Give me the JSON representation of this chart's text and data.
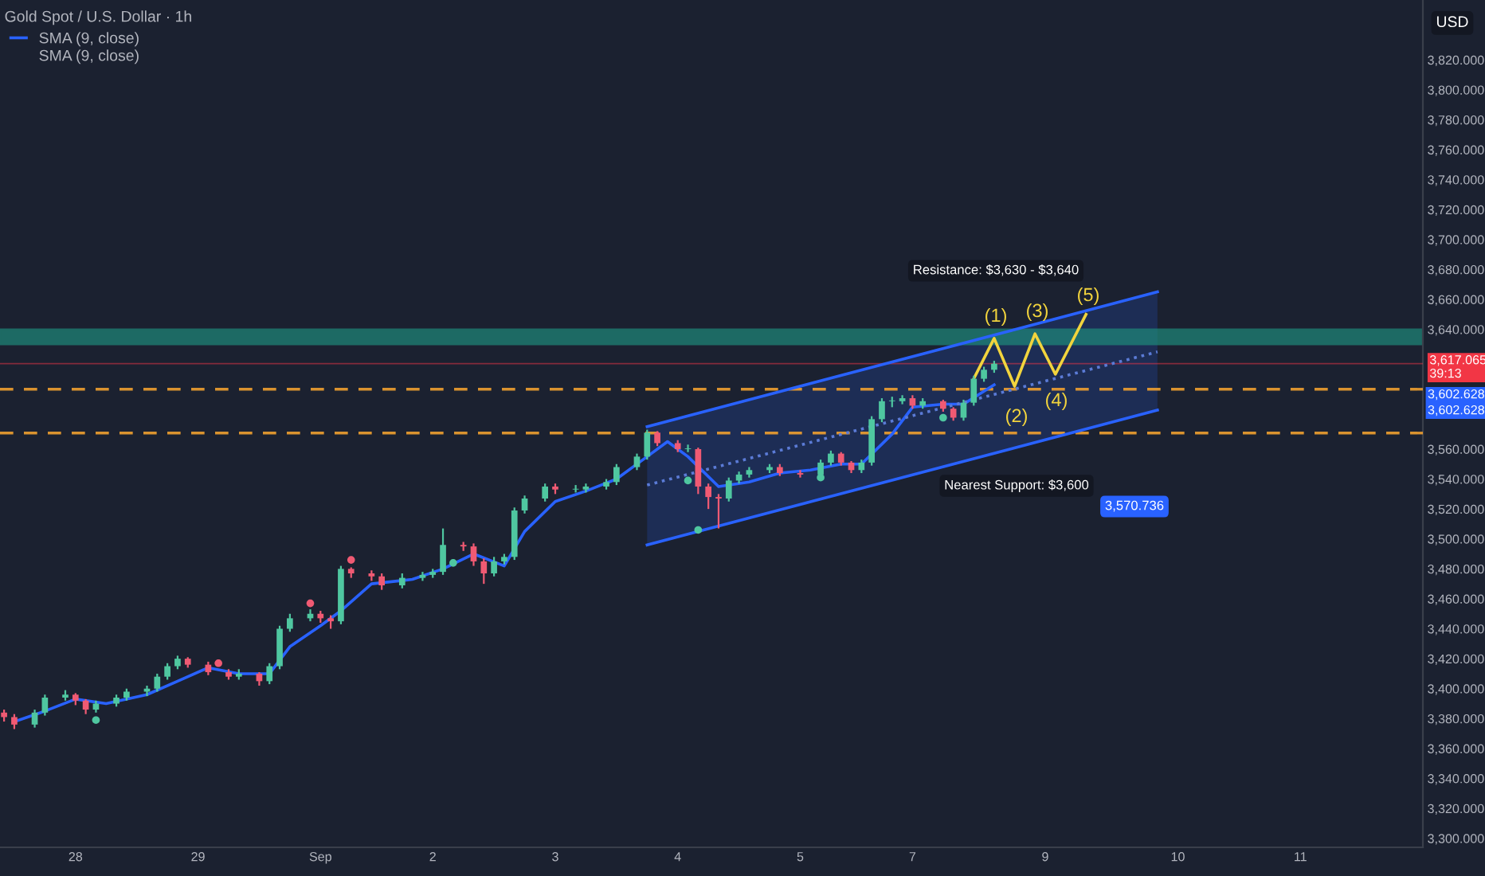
{
  "chart_data": {
    "type": "candlestick",
    "title": "Gold Spot / U.S. Dollar · 1h",
    "ylabel": "USD",
    "categories": [
      null,
      null,
      null,
      null,
      null,
      null,
      null,
      "28",
      null,
      null,
      null,
      null,
      null,
      null,
      null,
      null,
      null,
      null,
      null,
      "29",
      null,
      null,
      null,
      null,
      null,
      null,
      null,
      null,
      null,
      null,
      null,
      "Sep",
      null,
      null,
      null,
      null,
      null,
      null,
      null,
      null,
      null,
      null,
      "2",
      null,
      null,
      null,
      null,
      null,
      null,
      null,
      null,
      null,
      null,
      null,
      "3",
      null,
      null,
      null,
      null,
      null,
      null,
      null,
      null,
      null,
      null,
      null,
      "4",
      null,
      null,
      null,
      null,
      null,
      null,
      null,
      null,
      null,
      null,
      null,
      "5",
      null,
      null,
      null,
      null,
      null,
      null,
      null,
      null,
      null,
      null,
      "7",
      null,
      null,
      null,
      null,
      null,
      null,
      null,
      null,
      null,
      null,
      null,
      null,
      "9",
      null,
      null,
      null,
      null,
      null,
      null,
      null,
      null,
      null,
      null,
      null,
      null,
      "10",
      null,
      null,
      null,
      null,
      null,
      null,
      null,
      null,
      null,
      null,
      null,
      "11",
      null,
      null,
      null,
      null,
      null,
      null,
      null,
      null,
      null,
      null,
      null,
      null
    ],
    "ylim": [
      3294,
      3860
    ],
    "yticks": [
      {
        "value": 3300,
        "label": "3,300.000"
      },
      {
        "value": 3320,
        "label": "3,320.000"
      },
      {
        "value": 3340,
        "label": "3,340.000"
      },
      {
        "value": 3360,
        "label": "3,360.000"
      },
      {
        "value": 3380,
        "label": "3,380.000"
      },
      {
        "value": 3400,
        "label": "3,400.000"
      },
      {
        "value": 3420,
        "label": "3,420.000"
      },
      {
        "value": 3440,
        "label": "3,440.000"
      },
      {
        "value": 3460,
        "label": "3,460.000"
      },
      {
        "value": 3480,
        "label": "3,480.000"
      },
      {
        "value": 3500,
        "label": "3,500.000"
      },
      {
        "value": 3520,
        "label": "3,520.000"
      },
      {
        "value": 3540,
        "label": "3,540.000"
      },
      {
        "value": 3560,
        "label": "3,560.000"
      },
      {
        "value": 3640,
        "label": "3,640.000"
      },
      {
        "value": 3660,
        "label": "3,660.000"
      },
      {
        "value": 3680,
        "label": "3,680.000"
      },
      {
        "value": 3700,
        "label": "3,700.000"
      },
      {
        "value": 3720,
        "label": "3,720.000"
      },
      {
        "value": 3740,
        "label": "3,740.000"
      },
      {
        "value": 3760,
        "label": "3,760.000"
      },
      {
        "value": 3780,
        "label": "3,780.000"
      },
      {
        "value": 3800,
        "label": "3,800.000"
      },
      {
        "value": 3820,
        "label": "3,820.000"
      }
    ],
    "grid": false,
    "legend": "top left",
    "series": [
      {
        "type": "candlestick",
        "ohlc": [
          [
            3384,
            3386,
            3378,
            3381
          ],
          [
            3381,
            3383,
            3373,
            3376
          ],
          null,
          [
            3376,
            3386,
            3374,
            3384
          ],
          [
            3384,
            3396,
            3382,
            3394
          ],
          null,
          [
            3394,
            3399,
            3392,
            3396
          ],
          [
            3396,
            3397,
            3389,
            3392
          ],
          [
            3392,
            3393,
            3383,
            3386
          ],
          [
            3386,
            3392,
            3384,
            3390
          ],
          null,
          [
            3390,
            3396,
            3388,
            3394
          ],
          [
            3394,
            3400,
            3392,
            3398
          ],
          null,
          [
            3398,
            3402,
            3395,
            3400
          ],
          [
            3400,
            3410,
            3398,
            3408
          ],
          [
            3408,
            3417,
            3406,
            3415
          ],
          [
            3415,
            3422,
            3413,
            3420
          ],
          [
            3420,
            3421,
            3414,
            3416
          ],
          null,
          [
            3416,
            3418,
            3409,
            3411
          ],
          null,
          [
            3411,
            3413,
            3406,
            3408
          ],
          [
            3408,
            3413,
            3406,
            3410
          ],
          null,
          [
            3410,
            3411,
            3402,
            3405
          ],
          [
            3405,
            3417,
            3403,
            3415
          ],
          [
            3415,
            3442,
            3413,
            3440
          ],
          [
            3440,
            3450,
            3438,
            3447
          ],
          null,
          [
            3447,
            3453,
            3445,
            3450
          ],
          [
            3450,
            3452,
            3444,
            3447
          ],
          [
            3447,
            3449,
            3440,
            3445
          ],
          [
            3445,
            3482,
            3443,
            3480
          ],
          [
            3480,
            3481,
            3474,
            3477
          ],
          null,
          [
            3477,
            3479,
            3472,
            3475
          ],
          [
            3475,
            3477,
            3466,
            3469
          ],
          null,
          [
            3469,
            3477,
            3467,
            3474
          ],
          null,
          [
            3474,
            3478,
            3472,
            3476
          ],
          [
            3476,
            3480,
            3474,
            3478
          ],
          [
            3478,
            3507,
            3476,
            3496
          ],
          null,
          [
            3496,
            3498,
            3492,
            3495
          ],
          [
            3495,
            3497,
            3482,
            3485
          ],
          [
            3485,
            3487,
            3470,
            3477
          ],
          [
            3477,
            3488,
            3475,
            3485
          ],
          [
            3485,
            3490,
            3483,
            3488
          ],
          [
            3488,
            3521,
            3486,
            3519
          ],
          [
            3519,
            3529,
            3517,
            3527
          ],
          null,
          [
            3527,
            3537,
            3525,
            3535
          ],
          [
            3535,
            3537,
            3530,
            3533
          ],
          null,
          [
            3533,
            3536,
            3531,
            3533
          ],
          [
            3533,
            3537,
            3531,
            3535
          ],
          null,
          [
            3535,
            3540,
            3533,
            3538
          ],
          [
            3538,
            3550,
            3536,
            3548
          ],
          null,
          [
            3548,
            3557,
            3546,
            3555
          ],
          [
            3555,
            3573,
            3553,
            3571
          ],
          [
            3571,
            3572,
            3562,
            3564
          ],
          null,
          [
            3564,
            3566,
            3558,
            3560
          ],
          [
            3560,
            3563,
            3558,
            3560
          ],
          [
            3560,
            3561,
            3530,
            3535
          ],
          [
            3535,
            3537,
            3520,
            3528
          ],
          [
            3528,
            3530,
            3507,
            3527
          ],
          [
            3527,
            3541,
            3525,
            3539
          ],
          [
            3539,
            3545,
            3537,
            3543
          ],
          [
            3543,
            3548,
            3541,
            3546
          ],
          null,
          [
            3546,
            3550,
            3544,
            3548
          ],
          [
            3548,
            3550,
            3542,
            3544
          ],
          null,
          [
            3544,
            3546,
            3541,
            3543
          ],
          null,
          [
            3543,
            3553,
            3541,
            3551
          ],
          [
            3551,
            3559,
            3549,
            3557
          ],
          [
            3557,
            3558,
            3549,
            3551
          ],
          [
            3551,
            3552,
            3544,
            3546
          ],
          [
            3546,
            3553,
            3544,
            3551
          ],
          [
            3551,
            3582,
            3549,
            3580
          ],
          [
            3580,
            3594,
            3578,
            3592
          ],
          [
            3592,
            3595,
            3588,
            3592
          ],
          [
            3592,
            3596,
            3590,
            3594
          ],
          [
            3594,
            3596,
            3587,
            3589
          ],
          [
            3589,
            3594,
            3587,
            3592
          ],
          null,
          [
            3592,
            3593,
            3585,
            3587
          ],
          [
            3587,
            3588,
            3579,
            3581
          ],
          [
            3581,
            3593,
            3579,
            3591
          ],
          [
            3591,
            3609,
            3589,
            3607
          ],
          [
            3607,
            3615,
            3605,
            3613
          ],
          [
            3613,
            3619,
            3611,
            3617.065
          ],
          null,
          null,
          null,
          null,
          null,
          null,
          null,
          null,
          null,
          null,
          null,
          null,
          null,
          null,
          null,
          null,
          null,
          null,
          null,
          null,
          null,
          null,
          null,
          null,
          null,
          null,
          null,
          null,
          null,
          null,
          null,
          null,
          null,
          null,
          null,
          null,
          null,
          null,
          null,
          null,
          null,
          null
        ]
      },
      {
        "name": "SMA (9, close)",
        "type": "line",
        "color": "#2962ff",
        "values": [
          null,
          3378,
          null,
          null,
          3385,
          null,
          null,
          3393,
          null,
          null,
          3390,
          null,
          null,
          null,
          3396,
          null,
          null,
          3405,
          null,
          null,
          3414,
          null,
          null,
          3410,
          null,
          null,
          3410,
          null,
          3428,
          null,
          null,
          3442,
          null,
          3452,
          null,
          null,
          3470,
          null,
          null,
          null,
          3473,
          null,
          null,
          3480,
          null,
          null,
          3490,
          null,
          null,
          3482,
          null,
          3505,
          null,
          null,
          3525,
          null,
          null,
          3532,
          null,
          null,
          3540,
          null,
          null,
          3555,
          null,
          3565,
          null,
          3555,
          null,
          null,
          3535,
          null,
          null,
          3538,
          null,
          null,
          3544,
          null,
          null,
          3546,
          null,
          null,
          3550,
          null,
          3550,
          null,
          null,
          3570,
          null,
          3588,
          null,
          null,
          3590,
          null,
          3590,
          null,
          null,
          3603,
          null,
          null,
          null,
          null,
          null,
          null,
          null,
          null,
          null,
          null,
          null,
          null,
          null,
          null,
          null,
          null,
          null,
          null,
          null,
          null,
          null,
          null,
          null,
          null,
          null,
          null,
          null,
          null,
          null,
          null,
          null,
          null,
          null,
          null,
          null,
          null,
          null,
          null,
          null,
          null,
          null,
          null
        ]
      },
      {
        "type": "scatter",
        "values": [
          null,
          null,
          null,
          null,
          null,
          null,
          null,
          null,
          null,
          3379,
          null,
          null,
          null,
          null,
          null,
          null,
          null,
          null,
          null,
          null,
          null,
          3417,
          null,
          null,
          null,
          null,
          null,
          null,
          null,
          null,
          3457,
          null,
          null,
          null,
          3486,
          null,
          null,
          null,
          null,
          null,
          null,
          null,
          null,
          null,
          3484,
          null,
          null,
          null,
          null,
          null,
          null,
          null,
          null,
          null,
          null,
          null,
          null,
          null,
          null,
          null,
          null,
          null,
          null,
          null,
          null,
          null,
          null,
          3539,
          3506,
          null,
          null,
          null,
          null,
          null,
          null,
          null,
          null,
          null,
          null,
          null,
          3541,
          null,
          null,
          null,
          null,
          null,
          null,
          null,
          null,
          null,
          null,
          null,
          3581,
          null,
          null,
          null,
          null,
          null,
          null,
          null,
          null,
          null,
          null,
          null,
          null,
          null,
          null,
          null,
          null,
          null,
          null,
          null,
          null,
          null,
          null,
          null,
          null,
          null,
          null,
          null,
          null,
          null,
          null,
          null,
          null,
          null,
          null,
          null,
          null,
          null,
          null,
          null,
          null,
          null,
          null,
          null,
          null,
          null,
          null,
          null
        ],
        "colors": [
          null,
          null,
          null,
          null,
          null,
          null,
          null,
          null,
          null,
          "#4fc7a0",
          null,
          null,
          null,
          null,
          null,
          null,
          null,
          null,
          null,
          null,
          null,
          "#f05a73",
          null,
          null,
          null,
          null,
          null,
          null,
          null,
          null,
          "#f05a73",
          null,
          null,
          null,
          "#f05a73",
          null,
          null,
          null,
          null,
          null,
          null,
          null,
          null,
          null,
          "#4fc7a0",
          null,
          null,
          null,
          null,
          null,
          null,
          null,
          null,
          null,
          null,
          null,
          null,
          null,
          null,
          null,
          null,
          null,
          null,
          null,
          null,
          null,
          null,
          "#4fc7a0",
          "#4fc7a0",
          null,
          null,
          null,
          null,
          null,
          null,
          null,
          null,
          null,
          null,
          null,
          "#4fc7a0",
          null,
          null,
          null,
          null,
          null,
          null,
          null,
          null,
          null,
          null,
          null,
          "#4fc7a0",
          null,
          null,
          null,
          null,
          null,
          null,
          null,
          null,
          null,
          null,
          null,
          null,
          null,
          null,
          null,
          null,
          null,
          null,
          null,
          null,
          null,
          null,
          null,
          null,
          null,
          null,
          null,
          null,
          null,
          null,
          null,
          null,
          null,
          null,
          null,
          null,
          null,
          null,
          null,
          null,
          null,
          null,
          null,
          null,
          null,
          null,
          null
        ]
      },
      {
        "type": "line",
        "color": "#2962ff",
        "values": [
          null,
          null,
          null,
          null,
          null,
          null,
          null,
          null,
          null,
          null,
          null,
          null,
          null,
          null,
          null,
          null,
          null,
          null,
          null,
          null,
          null,
          null,
          null,
          null,
          null,
          null,
          null,
          null,
          null,
          null,
          null,
          null,
          null,
          null,
          null,
          null,
          null,
          null,
          null,
          null,
          null,
          null,
          null,
          null,
          null,
          null,
          null,
          null,
          null,
          null,
          null,
          null,
          null,
          null,
          null,
          null,
          null,
          null,
          null,
          null,
          null,
          null,
          null,
          3575,
          null,
          null,
          null,
          null,
          null,
          null,
          null,
          null,
          null,
          null,
          null,
          null,
          null,
          null,
          null,
          null,
          null,
          null,
          null,
          null,
          null,
          null,
          null,
          null,
          null,
          null,
          null,
          null,
          null,
          null,
          null,
          null,
          null,
          null,
          null,
          null,
          null,
          null,
          null,
          null,
          null,
          null,
          null,
          null,
          null,
          null,
          null,
          null,
          null,
          3665,
          null,
          null,
          null,
          null,
          null,
          null,
          null,
          null,
          null,
          null,
          null,
          null,
          null,
          null,
          null,
          null,
          null,
          null,
          null,
          null,
          null,
          null,
          null,
          null,
          null,
          null
        ]
      },
      {
        "type": "line",
        "color": "#2962ff",
        "values": [
          null,
          null,
          null,
          null,
          null,
          null,
          null,
          null,
          null,
          null,
          null,
          null,
          null,
          null,
          null,
          null,
          null,
          null,
          null,
          null,
          null,
          null,
          null,
          null,
          null,
          null,
          null,
          null,
          null,
          null,
          null,
          null,
          null,
          null,
          null,
          null,
          null,
          null,
          null,
          null,
          null,
          null,
          null,
          null,
          null,
          null,
          null,
          null,
          null,
          null,
          null,
          null,
          null,
          null,
          null,
          null,
          null,
          null,
          null,
          null,
          null,
          null,
          null,
          3496,
          null,
          null,
          null,
          null,
          null,
          null,
          null,
          null,
          null,
          null,
          null,
          null,
          null,
          null,
          null,
          null,
          null,
          null,
          null,
          null,
          null,
          null,
          null,
          null,
          null,
          null,
          null,
          null,
          null,
          null,
          null,
          null,
          null,
          null,
          null,
          null,
          null,
          null,
          null,
          null,
          null,
          null,
          null,
          null,
          null,
          null,
          null,
          null,
          null,
          3586,
          null,
          null,
          null,
          null,
          null,
          null,
          null,
          null,
          null,
          null,
          null,
          null,
          null,
          null,
          null,
          null,
          null,
          null,
          null,
          null,
          null,
          null,
          null,
          null,
          null,
          null
        ],
        "lower": [
          null,
          null,
          null,
          null,
          null,
          null,
          null,
          null,
          null,
          null,
          null,
          null,
          null,
          null,
          null,
          null,
          null,
          null,
          null,
          null,
          null,
          null,
          null,
          null,
          null,
          null,
          null,
          null,
          null,
          null,
          null,
          null,
          null,
          null,
          null,
          null,
          null,
          null,
          null,
          null,
          null,
          null,
          null,
          null,
          null,
          null,
          null,
          null,
          null,
          null,
          null,
          null,
          null,
          null,
          null,
          null,
          null,
          null,
          null,
          null,
          null,
          null,
          null,
          3496,
          null,
          null,
          null,
          null,
          null,
          null,
          null,
          null,
          null,
          null,
          null,
          null,
          null,
          null,
          null,
          null,
          null,
          null,
          null,
          null,
          null,
          null,
          null,
          null,
          null,
          null,
          null,
          null,
          null,
          null,
          null,
          null,
          null,
          null,
          null,
          null,
          null,
          null,
          null,
          null,
          null,
          null,
          null,
          null,
          null,
          null,
          null,
          null,
          null,
          3586,
          null,
          null,
          null,
          null,
          null,
          null,
          null,
          null,
          null,
          null,
          null,
          null,
          null,
          null,
          null,
          null,
          null,
          null,
          null,
          null,
          null,
          null,
          null,
          null,
          null,
          null
        ],
        "upper": [
          null,
          null,
          null,
          null,
          null,
          null,
          null,
          null,
          null,
          null,
          null,
          null,
          null,
          null,
          null,
          null,
          null,
          null,
          null,
          null,
          null,
          null,
          null,
          null,
          null,
          null,
          null,
          null,
          null,
          null,
          null,
          null,
          null,
          null,
          null,
          null,
          null,
          null,
          null,
          null,
          null,
          null,
          null,
          null,
          null,
          null,
          null,
          null,
          null,
          null,
          null,
          null,
          null,
          null,
          null,
          null,
          null,
          null,
          null,
          null,
          null,
          null,
          null,
          3575,
          null,
          null,
          null,
          null,
          null,
          null,
          null,
          null,
          null,
          null,
          null,
          null,
          null,
          null,
          null,
          null,
          null,
          null,
          null,
          null,
          null,
          null,
          null,
          null,
          null,
          null,
          null,
          null,
          null,
          null,
          null,
          null,
          null,
          null,
          null,
          null,
          null,
          null,
          null,
          null,
          null,
          null,
          null,
          null,
          null,
          null,
          null,
          null,
          null,
          3665,
          null,
          null,
          null,
          null,
          null,
          null,
          null,
          null,
          null,
          null,
          null,
          null,
          null,
          null,
          null,
          null,
          null,
          null,
          null,
          null,
          null,
          null,
          null,
          null,
          null,
          null
        ]
      },
      {
        "type": "line",
        "color": "#5b7bd6",
        "line_style": "dotted",
        "values": [
          null,
          null,
          null,
          null,
          null,
          null,
          null,
          null,
          null,
          null,
          null,
          null,
          null,
          null,
          null,
          null,
          null,
          null,
          null,
          null,
          null,
          null,
          null,
          null,
          null,
          null,
          null,
          null,
          null,
          null,
          null,
          null,
          null,
          null,
          null,
          null,
          null,
          null,
          null,
          null,
          null,
          null,
          null,
          null,
          null,
          null,
          null,
          null,
          null,
          null,
          null,
          null,
          null,
          null,
          null,
          null,
          null,
          null,
          null,
          null,
          null,
          null,
          null,
          3536,
          null,
          null,
          null,
          null,
          null,
          null,
          null,
          null,
          null,
          null,
          null,
          null,
          null,
          null,
          null,
          null,
          null,
          null,
          null,
          null,
          null,
          null,
          null,
          null,
          null,
          null,
          null,
          null,
          null,
          null,
          null,
          null,
          null,
          null,
          null,
          null,
          null,
          null,
          null,
          null,
          null,
          null,
          null,
          null,
          null,
          null,
          null,
          null,
          null,
          3625,
          null,
          null,
          null,
          null,
          null,
          null,
          null,
          null,
          null,
          null,
          null,
          null,
          null,
          null,
          null,
          null,
          null,
          null,
          null,
          null,
          null,
          null,
          null,
          null,
          null,
          null
        ]
      },
      {
        "type": "line",
        "color": "#f2d43d",
        "values": [
          null,
          null,
          null,
          null,
          null,
          null,
          null,
          null,
          null,
          null,
          null,
          null,
          null,
          null,
          null,
          null,
          null,
          null,
          null,
          null,
          null,
          null,
          null,
          null,
          null,
          null,
          null,
          null,
          null,
          null,
          null,
          null,
          null,
          null,
          null,
          null,
          null,
          null,
          null,
          null,
          null,
          null,
          null,
          null,
          null,
          null,
          null,
          null,
          null,
          null,
          null,
          null,
          null,
          null,
          null,
          null,
          null,
          null,
          null,
          null,
          null,
          null,
          null,
          null,
          null,
          null,
          null,
          null,
          null,
          null,
          null,
          null,
          null,
          null,
          null,
          null,
          null,
          null,
          null,
          null,
          null,
          null,
          null,
          null,
          null,
          null,
          null,
          null,
          null,
          null,
          null,
          null,
          null,
          null,
          null,
          3607,
          null,
          3634,
          null,
          3602,
          null,
          3637,
          null,
          3610,
          null,
          null,
          3650,
          null,
          null,
          null,
          null,
          null,
          null,
          null,
          null,
          null,
          null,
          null,
          null,
          null,
          null,
          null,
          null,
          null,
          null,
          null,
          null,
          null,
          null,
          null,
          null,
          null,
          null,
          null,
          null,
          null,
          null,
          null,
          null,
          null
        ]
      }
    ],
    "bands": [
      {
        "axis": "y",
        "from": 3630,
        "to": 3640,
        "color": "#1f8a7a"
      }
    ],
    "ref_lines": [
      {
        "axis": "y",
        "value": 3600,
        "color": "#f0a030",
        "line_style": "dashed"
      },
      {
        "axis": "y",
        "value": 3570.736,
        "color": "#f0a030",
        "line_style": "dashed"
      },
      {
        "axis": "y",
        "value": 3617.065,
        "label": "3,617.065\n39:13",
        "color": "#f23645",
        "line_style": "solid"
      }
    ],
    "annotations": [
      "Resistance: $3,630 - $3,640",
      "Nearest Support: $3,600",
      "3,570.736",
      "(1)",
      "(2)",
      "(3)",
      "(4)",
      "(5)",
      "3,602.628",
      "3,602.628",
      "SMA (9, close)"
    ]
  }
}
